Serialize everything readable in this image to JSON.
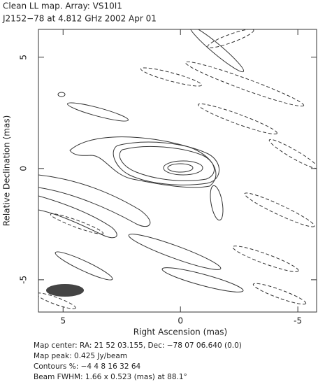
{
  "chart_data": {
    "type": "contour",
    "title": "Clean LL map.  Array:  VS10I1",
    "subtitle": "J2152−78 at 4.812 GHz 2002 Apr 01",
    "xlabel": "Right Ascension   (mas)",
    "ylabel": "Relative Declination   (mas)",
    "xlim": [
      6.05,
      -5.8
    ],
    "ylim": [
      -6.45,
      6.25
    ],
    "xticks": [
      5,
      0,
      -5
    ],
    "yticks": [
      5,
      0,
      -5
    ],
    "annotations": [
      "Map center:  RA: 21 52 03.155,  Dec: −78 07 06.640 (0.0)",
      "Map peak: 0.425 Jy/beam",
      "Contours %: −4 4 8 16 32 64",
      "Beam FWHM: 1.66 x 0.523 (mas) at 88.1°"
    ]
  }
}
